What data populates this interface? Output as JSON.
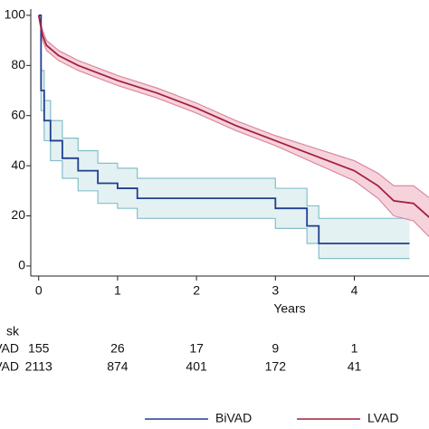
{
  "chart_data": {
    "type": "line",
    "step": {
      "BiVAD": true,
      "LVAD": false
    },
    "x_label": "Years",
    "xlim": [
      -0.1,
      5
    ],
    "xticks": [
      0,
      1,
      2,
      3,
      4
    ],
    "ylim": [
      -4,
      102.5
    ],
    "yticks": [
      0,
      20,
      40,
      60,
      80,
      100
    ],
    "at_risk_title": "sk",
    "at_risk_x": [
      0,
      1,
      2,
      3,
      4
    ],
    "series": [
      {
        "name": "BiVAD",
        "color": "#1f3f8f",
        "band_color": "#dfeef0",
        "band_edge": "#86bfca",
        "x": [
          0,
          0.03,
          0.07,
          0.15,
          0.3,
          0.5,
          0.75,
          1,
          1.25,
          1.5,
          2,
          2.5,
          3,
          3.4,
          3.55,
          4.7
        ],
        "values": [
          100,
          70,
          58,
          50,
          43,
          38,
          33,
          31,
          27,
          27,
          27,
          27,
          23,
          16,
          9,
          9
        ],
        "lower": [
          100,
          62,
          50,
          42,
          35,
          30,
          25,
          23,
          19,
          19,
          19,
          19,
          15,
          9,
          3,
          3
        ],
        "upper": [
          100,
          78,
          66,
          58,
          51,
          46,
          41,
          39,
          35,
          35,
          35,
          35,
          31,
          24,
          19,
          19
        ],
        "at_risk": [
          155,
          26,
          17,
          9,
          1
        ]
      },
      {
        "name": "LVAD",
        "color": "#a31f3f",
        "band_color": "#f5cbd6",
        "band_edge": "#d98aa0",
        "x": [
          0,
          0.05,
          0.1,
          0.25,
          0.5,
          1,
          1.5,
          2,
          2.5,
          3,
          3.5,
          4,
          4.3,
          4.5,
          4.75,
          5
        ],
        "values": [
          100,
          92,
          88,
          84,
          80,
          74,
          69,
          63,
          56,
          50,
          44,
          38,
          32,
          26,
          25,
          18
        ],
        "lower": [
          100,
          90,
          86,
          82,
          78,
          72,
          67,
          61,
          54,
          48,
          41,
          34,
          27,
          20,
          18,
          10
        ],
        "upper": [
          100,
          94,
          90,
          86,
          82,
          76,
          71,
          65,
          58,
          52,
          47,
          42,
          37,
          32,
          32,
          26
        ],
        "at_risk": [
          2113,
          874,
          401,
          172,
          41
        ]
      }
    ]
  }
}
